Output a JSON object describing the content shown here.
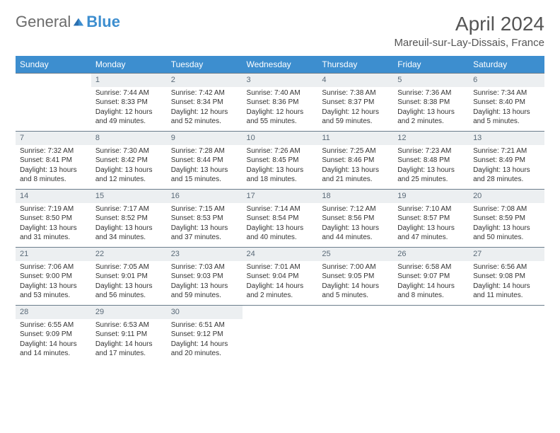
{
  "brand": {
    "text1": "General",
    "text2": "Blue"
  },
  "title": "April 2024",
  "location": "Mareuil-sur-Lay-Dissais, France",
  "colors": {
    "header_bg": "#3d8ecf",
    "daynum_bg": "#eceff1",
    "rule": "#6b7d8c"
  },
  "weekdays": [
    "Sunday",
    "Monday",
    "Tuesday",
    "Wednesday",
    "Thursday",
    "Friday",
    "Saturday"
  ],
  "weeks": [
    [
      null,
      {
        "n": "1",
        "sr": "Sunrise: 7:44 AM",
        "ss": "Sunset: 8:33 PM",
        "d1": "Daylight: 12 hours",
        "d2": "and 49 minutes."
      },
      {
        "n": "2",
        "sr": "Sunrise: 7:42 AM",
        "ss": "Sunset: 8:34 PM",
        "d1": "Daylight: 12 hours",
        "d2": "and 52 minutes."
      },
      {
        "n": "3",
        "sr": "Sunrise: 7:40 AM",
        "ss": "Sunset: 8:36 PM",
        "d1": "Daylight: 12 hours",
        "d2": "and 55 minutes."
      },
      {
        "n": "4",
        "sr": "Sunrise: 7:38 AM",
        "ss": "Sunset: 8:37 PM",
        "d1": "Daylight: 12 hours",
        "d2": "and 59 minutes."
      },
      {
        "n": "5",
        "sr": "Sunrise: 7:36 AM",
        "ss": "Sunset: 8:38 PM",
        "d1": "Daylight: 13 hours",
        "d2": "and 2 minutes."
      },
      {
        "n": "6",
        "sr": "Sunrise: 7:34 AM",
        "ss": "Sunset: 8:40 PM",
        "d1": "Daylight: 13 hours",
        "d2": "and 5 minutes."
      }
    ],
    [
      {
        "n": "7",
        "sr": "Sunrise: 7:32 AM",
        "ss": "Sunset: 8:41 PM",
        "d1": "Daylight: 13 hours",
        "d2": "and 8 minutes."
      },
      {
        "n": "8",
        "sr": "Sunrise: 7:30 AM",
        "ss": "Sunset: 8:42 PM",
        "d1": "Daylight: 13 hours",
        "d2": "and 12 minutes."
      },
      {
        "n": "9",
        "sr": "Sunrise: 7:28 AM",
        "ss": "Sunset: 8:44 PM",
        "d1": "Daylight: 13 hours",
        "d2": "and 15 minutes."
      },
      {
        "n": "10",
        "sr": "Sunrise: 7:26 AM",
        "ss": "Sunset: 8:45 PM",
        "d1": "Daylight: 13 hours",
        "d2": "and 18 minutes."
      },
      {
        "n": "11",
        "sr": "Sunrise: 7:25 AM",
        "ss": "Sunset: 8:46 PM",
        "d1": "Daylight: 13 hours",
        "d2": "and 21 minutes."
      },
      {
        "n": "12",
        "sr": "Sunrise: 7:23 AM",
        "ss": "Sunset: 8:48 PM",
        "d1": "Daylight: 13 hours",
        "d2": "and 25 minutes."
      },
      {
        "n": "13",
        "sr": "Sunrise: 7:21 AM",
        "ss": "Sunset: 8:49 PM",
        "d1": "Daylight: 13 hours",
        "d2": "and 28 minutes."
      }
    ],
    [
      {
        "n": "14",
        "sr": "Sunrise: 7:19 AM",
        "ss": "Sunset: 8:50 PM",
        "d1": "Daylight: 13 hours",
        "d2": "and 31 minutes."
      },
      {
        "n": "15",
        "sr": "Sunrise: 7:17 AM",
        "ss": "Sunset: 8:52 PM",
        "d1": "Daylight: 13 hours",
        "d2": "and 34 minutes."
      },
      {
        "n": "16",
        "sr": "Sunrise: 7:15 AM",
        "ss": "Sunset: 8:53 PM",
        "d1": "Daylight: 13 hours",
        "d2": "and 37 minutes."
      },
      {
        "n": "17",
        "sr": "Sunrise: 7:14 AM",
        "ss": "Sunset: 8:54 PM",
        "d1": "Daylight: 13 hours",
        "d2": "and 40 minutes."
      },
      {
        "n": "18",
        "sr": "Sunrise: 7:12 AM",
        "ss": "Sunset: 8:56 PM",
        "d1": "Daylight: 13 hours",
        "d2": "and 44 minutes."
      },
      {
        "n": "19",
        "sr": "Sunrise: 7:10 AM",
        "ss": "Sunset: 8:57 PM",
        "d1": "Daylight: 13 hours",
        "d2": "and 47 minutes."
      },
      {
        "n": "20",
        "sr": "Sunrise: 7:08 AM",
        "ss": "Sunset: 8:59 PM",
        "d1": "Daylight: 13 hours",
        "d2": "and 50 minutes."
      }
    ],
    [
      {
        "n": "21",
        "sr": "Sunrise: 7:06 AM",
        "ss": "Sunset: 9:00 PM",
        "d1": "Daylight: 13 hours",
        "d2": "and 53 minutes."
      },
      {
        "n": "22",
        "sr": "Sunrise: 7:05 AM",
        "ss": "Sunset: 9:01 PM",
        "d1": "Daylight: 13 hours",
        "d2": "and 56 minutes."
      },
      {
        "n": "23",
        "sr": "Sunrise: 7:03 AM",
        "ss": "Sunset: 9:03 PM",
        "d1": "Daylight: 13 hours",
        "d2": "and 59 minutes."
      },
      {
        "n": "24",
        "sr": "Sunrise: 7:01 AM",
        "ss": "Sunset: 9:04 PM",
        "d1": "Daylight: 14 hours",
        "d2": "and 2 minutes."
      },
      {
        "n": "25",
        "sr": "Sunrise: 7:00 AM",
        "ss": "Sunset: 9:05 PM",
        "d1": "Daylight: 14 hours",
        "d2": "and 5 minutes."
      },
      {
        "n": "26",
        "sr": "Sunrise: 6:58 AM",
        "ss": "Sunset: 9:07 PM",
        "d1": "Daylight: 14 hours",
        "d2": "and 8 minutes."
      },
      {
        "n": "27",
        "sr": "Sunrise: 6:56 AM",
        "ss": "Sunset: 9:08 PM",
        "d1": "Daylight: 14 hours",
        "d2": "and 11 minutes."
      }
    ],
    [
      {
        "n": "28",
        "sr": "Sunrise: 6:55 AM",
        "ss": "Sunset: 9:09 PM",
        "d1": "Daylight: 14 hours",
        "d2": "and 14 minutes."
      },
      {
        "n": "29",
        "sr": "Sunrise: 6:53 AM",
        "ss": "Sunset: 9:11 PM",
        "d1": "Daylight: 14 hours",
        "d2": "and 17 minutes."
      },
      {
        "n": "30",
        "sr": "Sunrise: 6:51 AM",
        "ss": "Sunset: 9:12 PM",
        "d1": "Daylight: 14 hours",
        "d2": "and 20 minutes."
      },
      null,
      null,
      null,
      null
    ]
  ]
}
